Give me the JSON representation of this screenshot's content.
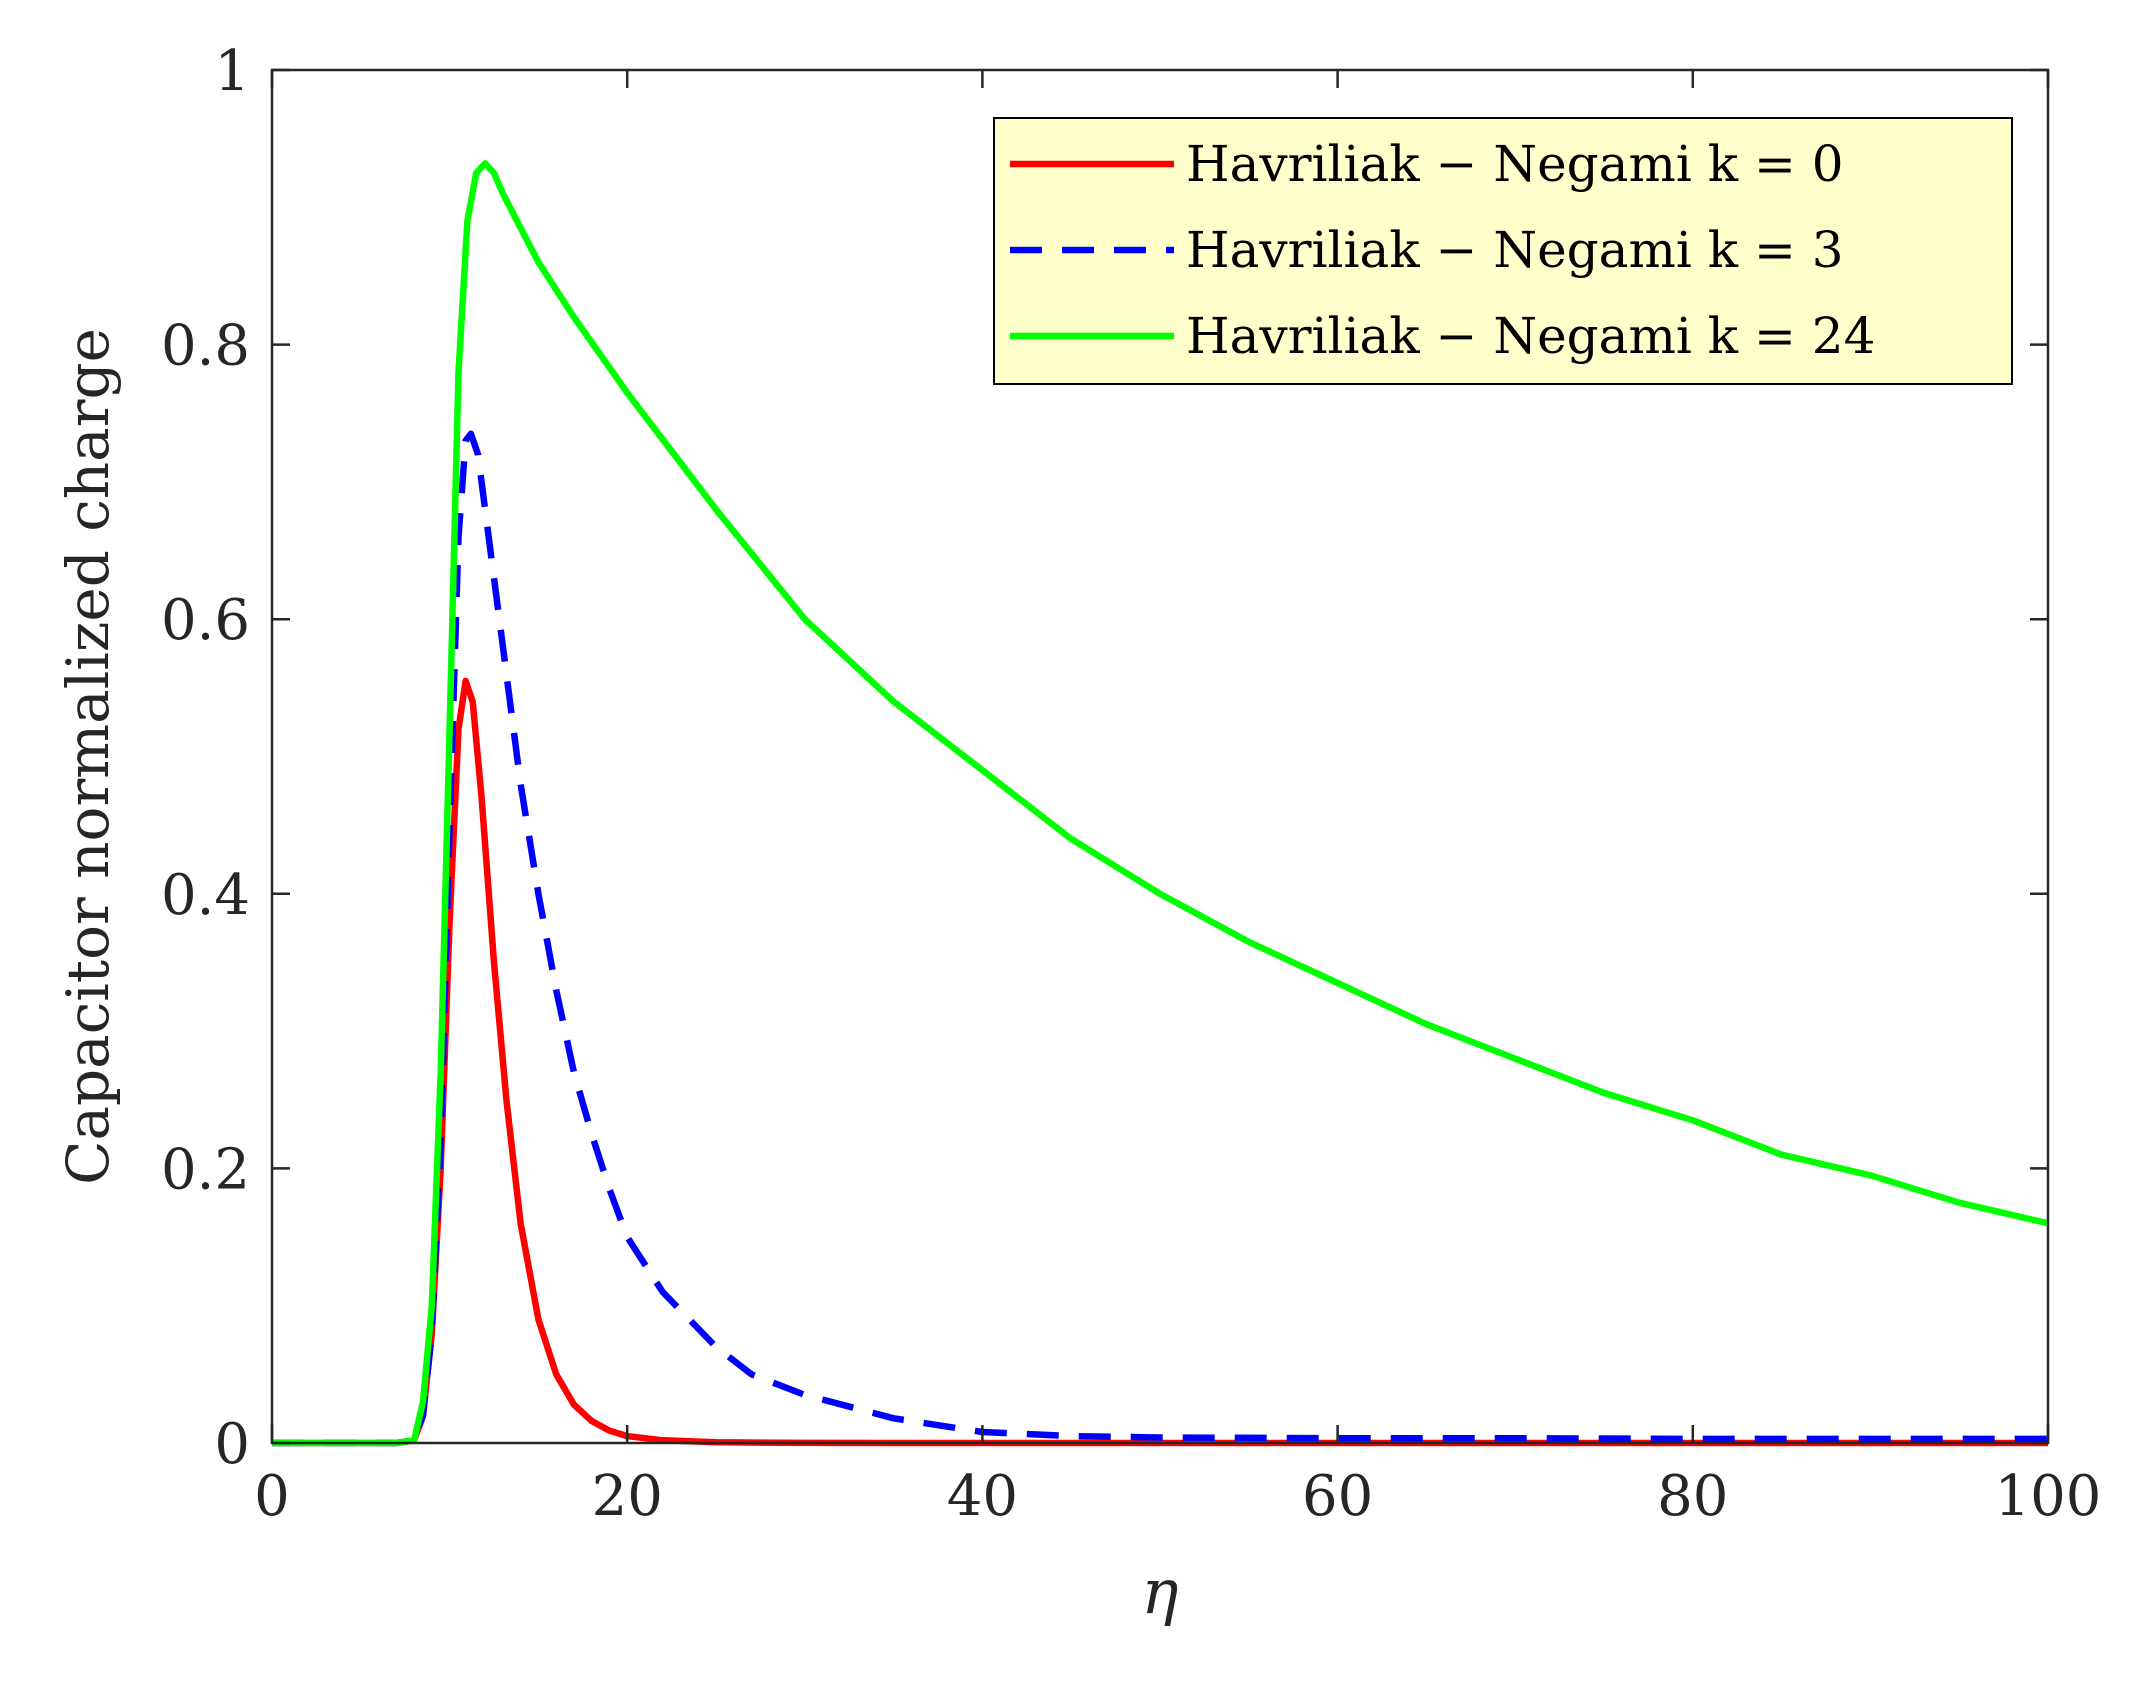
{
  "chart_data": {
    "type": "line",
    "title": "",
    "xlabel": "η",
    "ylabel": "Capacitor normalized charge",
    "xlim": [
      0,
      100
    ],
    "ylim": [
      0,
      1
    ],
    "xticks": [
      0,
      20,
      40,
      60,
      80,
      100
    ],
    "yticks": [
      0,
      0.2,
      0.4,
      0.6,
      0.8,
      1
    ],
    "xtick_labels": [
      "0",
      "20",
      "40",
      "60",
      "80",
      "100"
    ],
    "ytick_labels": [
      "0",
      "0.2",
      "0.4",
      "0.6",
      "0.8",
      "1"
    ],
    "grid": false,
    "box": true,
    "legend": {
      "position": "top-right",
      "background": "#ffffcc",
      "border": "#000000"
    },
    "series": [
      {
        "name": "Havriliak − Negami k = 0",
        "color": "#ff0000",
        "style": "solid",
        "x": [
          0,
          7,
          8,
          8.5,
          9,
          9.5,
          10,
          10.5,
          10.9,
          11.3,
          11.8,
          12.5,
          13.2,
          14,
          15,
          16,
          17,
          18,
          19,
          20,
          22,
          25,
          30,
          40,
          60,
          80,
          100
        ],
        "y": [
          0,
          0,
          0.002,
          0.02,
          0.08,
          0.2,
          0.38,
          0.52,
          0.555,
          0.54,
          0.47,
          0.35,
          0.25,
          0.16,
          0.09,
          0.05,
          0.028,
          0.016,
          0.009,
          0.005,
          0.002,
          0.0005,
          0.0001,
          0,
          0,
          0,
          0
        ]
      },
      {
        "name": "Havriliak − Negami k = 3",
        "color": "#0000ff",
        "style": "dashed",
        "x": [
          0,
          7,
          8,
          8.5,
          9,
          9.5,
          10,
          10.5,
          10.9,
          11.2,
          11.6,
          12,
          13,
          14,
          15,
          16,
          17,
          18,
          19,
          20,
          22,
          25,
          27,
          30,
          35,
          40,
          45,
          50,
          60,
          70,
          80,
          90,
          100
        ],
        "y": [
          0,
          0,
          0.002,
          0.02,
          0.08,
          0.22,
          0.45,
          0.66,
          0.73,
          0.735,
          0.72,
          0.68,
          0.58,
          0.48,
          0.4,
          0.33,
          0.27,
          0.225,
          0.185,
          0.15,
          0.11,
          0.07,
          0.05,
          0.035,
          0.018,
          0.008,
          0.005,
          0.004,
          0.0035,
          0.0035,
          0.003,
          0.003,
          0.003
        ]
      },
      {
        "name": "Havriliak − Negami k = 24",
        "color": "#00ff00",
        "style": "solid",
        "x": [
          0,
          7,
          8,
          8.5,
          9,
          9.5,
          10,
          10.5,
          11,
          11.5,
          12,
          12.5,
          13,
          14,
          15,
          17,
          20,
          25,
          30,
          35,
          40,
          45,
          50,
          55,
          60,
          65,
          70,
          75,
          80,
          85,
          90,
          95,
          100
        ],
        "y": [
          0,
          0,
          0.002,
          0.03,
          0.1,
          0.27,
          0.52,
          0.78,
          0.89,
          0.925,
          0.932,
          0.925,
          0.91,
          0.885,
          0.86,
          0.82,
          0.765,
          0.68,
          0.6,
          0.54,
          0.49,
          0.44,
          0.4,
          0.365,
          0.335,
          0.305,
          0.28,
          0.255,
          0.235,
          0.21,
          0.195,
          0.175,
          0.16
        ]
      }
    ]
  }
}
